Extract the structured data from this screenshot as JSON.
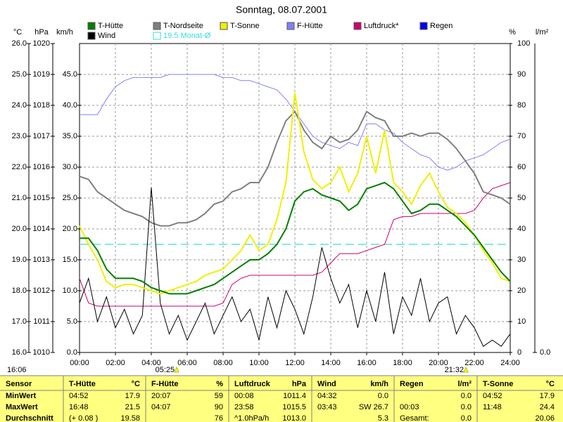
{
  "chart_data": {
    "type": "line",
    "title": "Sonntag, 08.07.2001",
    "x": [
      0,
      0.5,
      1,
      1.5,
      2,
      2.5,
      3,
      3.5,
      4,
      4.5,
      5,
      5.5,
      6,
      6.5,
      7,
      7.5,
      8,
      8.5,
      9,
      9.5,
      10,
      10.5,
      11,
      11.5,
      12,
      12.5,
      13,
      13.5,
      14,
      14.5,
      15,
      15.5,
      16,
      16.5,
      17,
      17.5,
      18,
      18.5,
      19,
      19.5,
      20,
      20.5,
      21,
      21.5,
      22,
      22.5,
      23,
      23.5,
      24
    ],
    "xlim": [
      0,
      24
    ],
    "xticks": [
      {
        "value": 0,
        "label": "00:00"
      },
      {
        "value": 2,
        "label": "02:00"
      },
      {
        "value": 4,
        "label": "04:00"
      },
      {
        "value": 6,
        "label": "06:00"
      },
      {
        "value": 8,
        "label": "08:00"
      },
      {
        "value": 10,
        "label": "10:00"
      },
      {
        "value": 12,
        "label": "12:00"
      },
      {
        "value": 14,
        "label": "14:00"
      },
      {
        "value": 16,
        "label": "16:00"
      },
      {
        "value": 18,
        "label": "18:00"
      },
      {
        "value": 20,
        "label": "20:00"
      },
      {
        "value": 22,
        "label": "22:00"
      },
      {
        "value": 24,
        "label": "24:00"
      }
    ],
    "grid": true,
    "axes": {
      "temp": {
        "unit": "°C",
        "lim": [
          16,
          26
        ],
        "ticks": [
          {
            "value": 16,
            "label": "16.0"
          },
          {
            "value": 17,
            "label": "17.0"
          },
          {
            "value": 18,
            "label": "18.0"
          },
          {
            "value": 19,
            "label": "19.0"
          },
          {
            "value": 20,
            "label": "20.0"
          },
          {
            "value": 21,
            "label": "21.0"
          },
          {
            "value": 22,
            "label": "22.0"
          },
          {
            "value": 23,
            "label": "23.0"
          },
          {
            "value": 24,
            "label": "24.0"
          },
          {
            "value": 25,
            "label": "25.0"
          },
          {
            "value": 26,
            "label": "26.0"
          }
        ]
      },
      "hPa": {
        "unit": "hPa",
        "lim": [
          1010,
          1020
        ],
        "ticks": [
          1010,
          1011,
          1012,
          1013,
          1014,
          1015,
          1016,
          1017,
          1018,
          1019,
          1020
        ]
      },
      "kmh": {
        "unit": "km/h",
        "lim": [
          0,
          50
        ],
        "ticks": [
          {
            "value": 0,
            "label": "0.0"
          },
          {
            "value": 5,
            "label": "5.0"
          },
          {
            "value": 10,
            "label": "10.0"
          },
          {
            "value": 15,
            "label": "15.0"
          },
          {
            "value": 20,
            "label": "20.0"
          },
          {
            "value": 25,
            "label": "25.0"
          },
          {
            "value": 30,
            "label": "30.0"
          },
          {
            "value": 35,
            "label": "35.0"
          },
          {
            "value": 40,
            "label": "40.0"
          },
          {
            "value": 45,
            "label": "45.0"
          }
        ]
      },
      "pct": {
        "unit": "%",
        "lim": [
          0,
          100
        ],
        "ticks": [
          0,
          10,
          20,
          30,
          40,
          50,
          60,
          70,
          80,
          90,
          100
        ]
      },
      "rain": {
        "unit": "l/m²",
        "lim": [
          0,
          10
        ],
        "ticks": [
          {
            "value": 0,
            "label": "0.0"
          }
        ]
      }
    },
    "series": [
      {
        "name": "T-Hütte",
        "color": "#008000",
        "axis": "temp",
        "values": [
          19.7,
          19.7,
          19.3,
          18.7,
          18.4,
          18.4,
          18.4,
          18.3,
          18.1,
          18.0,
          17.9,
          17.9,
          17.9,
          18.0,
          18.1,
          18.2,
          18.4,
          18.6,
          18.8,
          19.0,
          19.0,
          19.2,
          19.5,
          20.0,
          20.9,
          21.2,
          21.3,
          21.1,
          21.0,
          20.9,
          20.6,
          20.8,
          21.3,
          21.4,
          21.5,
          21.3,
          20.9,
          20.5,
          20.6,
          20.8,
          20.8,
          20.6,
          20.4,
          20.1,
          19.8,
          19.4,
          19.0,
          18.6,
          18.3
        ]
      },
      {
        "name": "Wind",
        "color": "#000000",
        "axis": "kmh",
        "values": [
          8,
          12,
          5,
          9,
          4,
          7,
          3,
          6,
          26.7,
          8,
          3,
          6,
          2,
          5,
          8,
          3,
          6,
          9,
          5,
          7,
          2,
          9,
          4,
          10,
          7,
          3,
          9,
          17,
          12,
          8,
          11,
          4,
          10,
          5,
          13,
          3,
          9,
          6,
          12,
          5,
          8,
          9,
          3,
          6,
          4,
          1,
          2,
          1,
          3
        ]
      },
      {
        "name": "T-Nordseite",
        "color": "#808080",
        "axis": "temp",
        "values": [
          21.7,
          21.6,
          21.2,
          21.0,
          20.8,
          20.6,
          20.5,
          20.4,
          20.2,
          20.1,
          20.1,
          20.2,
          20.2,
          20.3,
          20.5,
          20.8,
          20.9,
          21.2,
          21.3,
          21.5,
          21.5,
          22.0,
          22.8,
          23.5,
          23.8,
          23.2,
          22.8,
          22.6,
          23.0,
          22.8,
          22.9,
          23.2,
          23.8,
          23.6,
          23.5,
          23.0,
          23.0,
          23.1,
          23.0,
          23.1,
          23.1,
          22.9,
          22.6,
          22.2,
          21.8,
          21.2,
          21.1,
          21.0,
          20.8
        ]
      },
      {
        "name": "T-Sonne",
        "color": "#f0f000",
        "axis": "temp",
        "values": [
          20.1,
          19.5,
          19.0,
          18.3,
          18.1,
          18.2,
          18.2,
          18.1,
          18.0,
          17.9,
          18.0,
          18.1,
          18.2,
          18.3,
          18.5,
          18.6,
          18.7,
          19.0,
          19.3,
          19.8,
          19.3,
          19.5,
          20.3,
          21.5,
          24.4,
          22.5,
          21.6,
          21.3,
          21.5,
          22.0,
          21.2,
          21.8,
          23.0,
          21.8,
          23.2,
          21.5,
          21.2,
          20.8,
          21.4,
          21.8,
          21.2,
          20.7,
          20.5,
          20.2,
          19.8,
          19.3,
          18.9,
          18.4,
          18.3
        ]
      },
      {
        "name": "F-Hütte",
        "color": "#8080ff",
        "axis": "pct",
        "values": [
          77,
          77,
          77,
          82,
          86,
          88,
          89,
          89,
          89,
          89,
          90,
          90,
          90,
          90,
          90,
          90,
          89,
          89,
          88,
          88,
          87,
          86,
          85,
          82,
          78,
          74,
          70,
          68,
          67,
          66,
          68,
          67,
          74,
          74,
          72,
          71,
          68,
          66,
          64,
          63,
          60,
          59,
          60,
          62,
          63,
          64,
          66,
          68,
          69
        ]
      },
      {
        "name": "Luftdruck*",
        "color": "#d0006f",
        "axis": "hPa",
        "values": [
          1012.4,
          1011.6,
          1011.5,
          1011.5,
          1011.5,
          1011.5,
          1011.5,
          1011.5,
          1011.5,
          1011.5,
          1011.5,
          1011.5,
          1011.5,
          1011.5,
          1011.5,
          1011.5,
          1011.6,
          1012.2,
          1012.4,
          1012.5,
          1012.5,
          1012.5,
          1012.5,
          1012.5,
          1012.5,
          1012.5,
          1012.5,
          1012.6,
          1012.9,
          1013.2,
          1013.2,
          1013.2,
          1013.3,
          1013.4,
          1013.5,
          1014.3,
          1014.4,
          1014.4,
          1014.5,
          1014.5,
          1014.5,
          1014.5,
          1014.5,
          1014.5,
          1014.6,
          1015.0,
          1015.3,
          1015.4,
          1015.5
        ]
      },
      {
        "name": "Regen",
        "color": "#0000ff",
        "axis": "rain",
        "draw": "bar",
        "values": [
          0,
          0,
          0,
          0,
          0,
          0,
          0,
          0,
          0,
          0,
          0,
          0,
          0,
          0,
          0,
          0,
          0,
          0,
          0,
          0,
          0,
          0,
          0,
          0,
          0,
          0,
          0,
          0,
          0,
          0,
          0,
          0,
          0,
          0,
          0,
          0,
          0,
          0,
          0,
          0,
          0,
          0,
          0,
          0,
          0,
          0,
          0,
          0,
          0
        ]
      }
    ],
    "reference": {
      "label": "19.5 Monat-Ø",
      "value": 19.5,
      "axis": "temp",
      "color": "#33dddd"
    },
    "annotations": [
      {
        "label": "16:06"
      },
      {
        "label": "05:25",
        "x": 5.4167
      },
      {
        "label": "21:32",
        "x": 21.5333
      }
    ]
  },
  "table": {
    "header": [
      "Sensor",
      [
        "T-Hütte",
        "°C"
      ],
      [
        "F-Hütte",
        "%"
      ],
      [
        "Luftdruck",
        "hPa"
      ],
      [
        "Wind",
        "km/h"
      ],
      [
        "Regen",
        "l/m²"
      ],
      [
        "T-Sonne",
        "°C"
      ]
    ],
    "rows": [
      [
        "MinWert",
        [
          "04:52",
          "17.9"
        ],
        [
          "20:07",
          "59"
        ],
        [
          "00:08",
          "1011.4"
        ],
        [
          "04:32",
          "0.0"
        ],
        [
          null,
          "0.0"
        ],
        [
          "04:52",
          "17.9"
        ]
      ],
      [
        "MaxWert",
        [
          "16:48",
          "21.5"
        ],
        [
          "04:07",
          "90"
        ],
        [
          "23:58",
          "1015.5"
        ],
        [
          "03:43",
          "SW 26.7"
        ],
        [
          "00:03",
          "0.0"
        ],
        [
          "11:48",
          "24.4"
        ]
      ],
      [
        "Durchschnitt",
        [
          "(+ 0.08 )",
          "19.58"
        ],
        [
          null,
          "76"
        ],
        [
          "^1.0hPa/h",
          "1013.0"
        ],
        [
          null,
          "5.3"
        ],
        [
          "Gesamt:",
          "0.0"
        ],
        [
          null,
          "20.06"
        ]
      ]
    ]
  }
}
